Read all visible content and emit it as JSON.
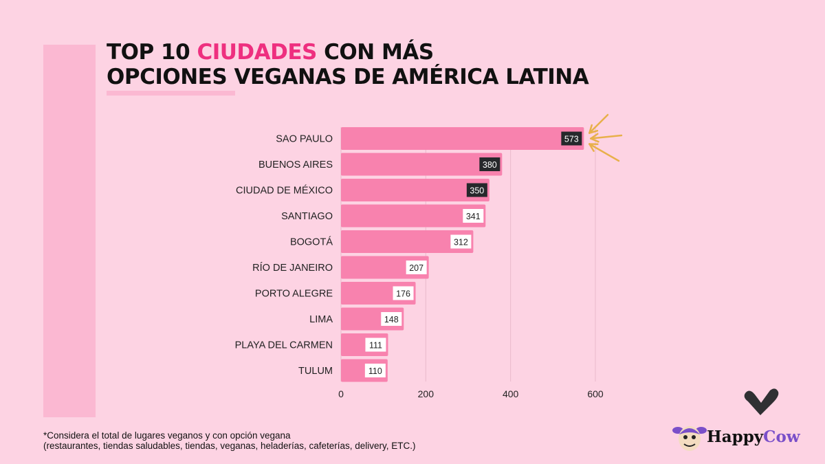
{
  "title": {
    "line1_a": "TOP 10 ",
    "line1_highlight": "CIUDADES",
    "line1_b": " CON MÁS",
    "line2": "OPCIONES VEGANAS DE AMÉRICA LATINA"
  },
  "chart_data": {
    "type": "bar",
    "orientation": "horizontal",
    "categories": [
      "SAO PAULO",
      "BUENOS AIRES",
      "CIUDAD DE MÉXICO",
      "SANTIAGO",
      "BOGOTÁ",
      "RÍO DE JANEIRO",
      "PORTO ALEGRE",
      "LIMA",
      "PLAYA DEL CARMEN",
      "TULUM"
    ],
    "values": [
      573,
      380,
      350,
      341,
      312,
      207,
      176,
      148,
      111,
      110
    ],
    "xlim": [
      0,
      600
    ],
    "xticks": [
      0,
      200,
      400,
      600
    ],
    "grid": "vertical",
    "bar_color": "#f882ae",
    "label_dark_top": 3,
    "label_dark_bg": "#26282b",
    "highlight": "arrows pointing at SAO PAULO",
    "arrow_color": "#e8b04a"
  },
  "footnote": {
    "line1": "*Considera el total de lugares veganos y con opción vegana",
    "line2": "(restaurantes, tiendas saludables, tiendas, veganas, heladerías, cafeterías, delivery, ETC.)"
  },
  "logo": {
    "part1": "Happy",
    "part2": "Cow"
  }
}
